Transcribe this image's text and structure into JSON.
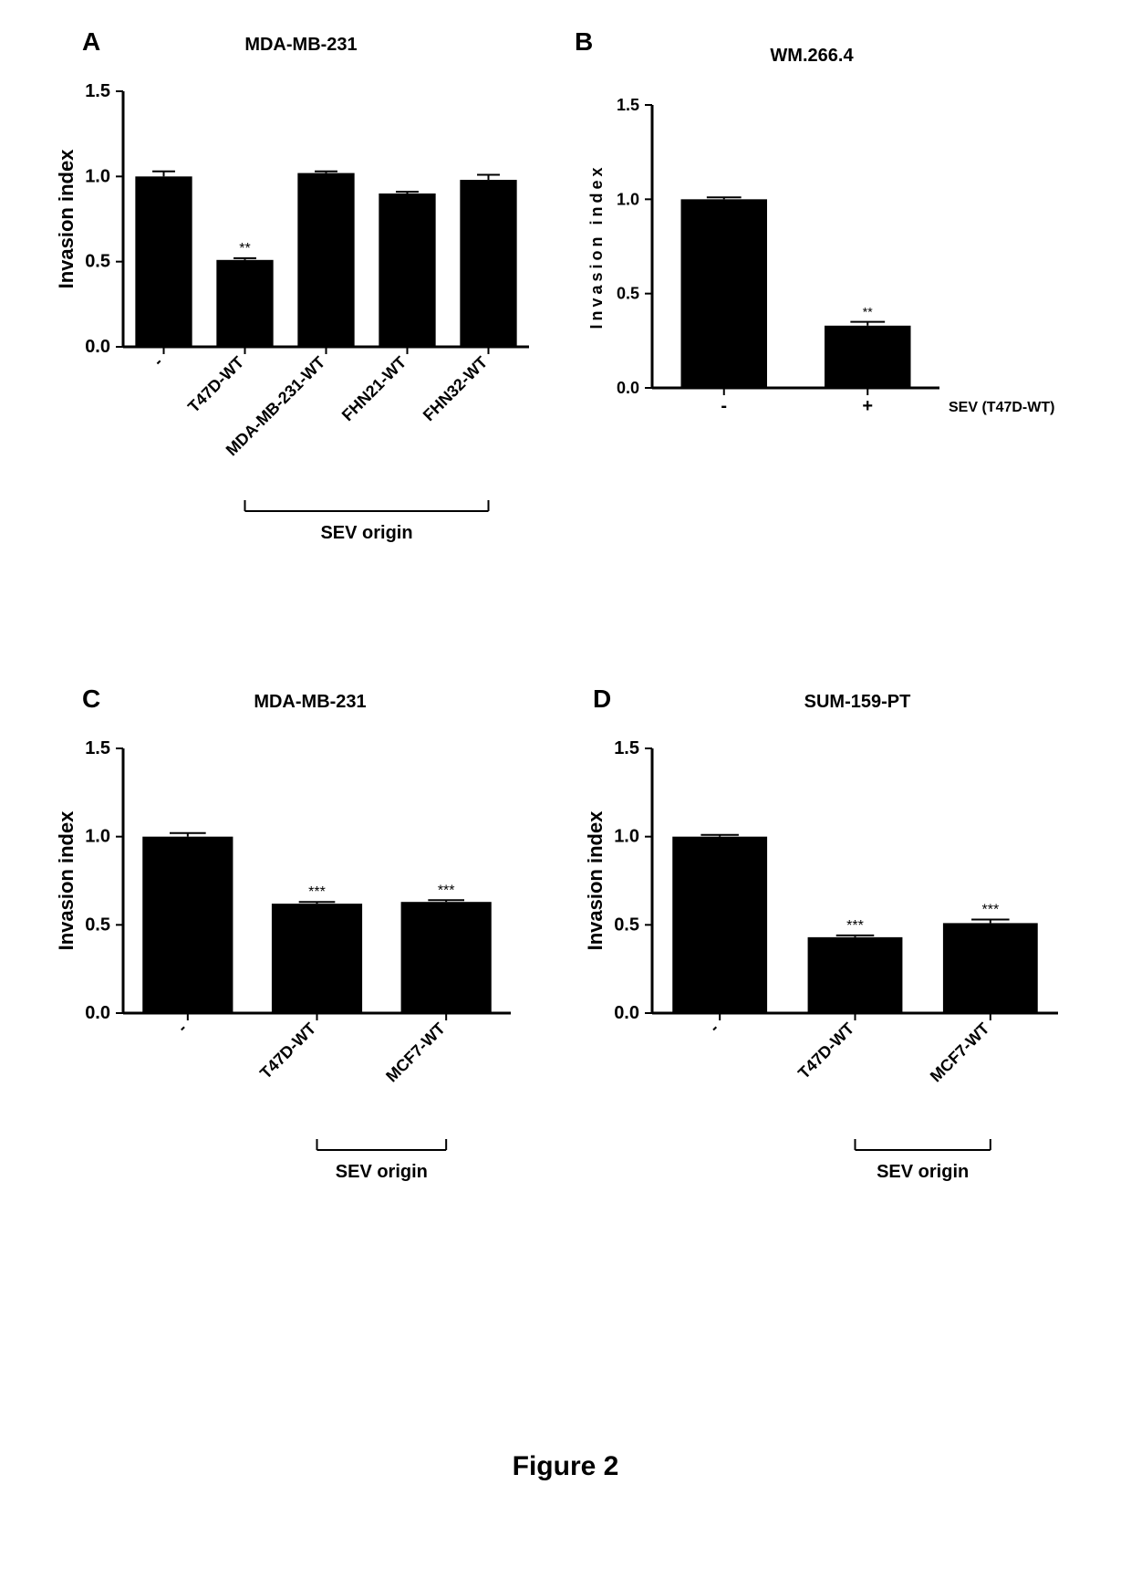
{
  "figure_caption": "Figure 2",
  "panelA": {
    "label": "A",
    "title": "MDA-MB-231",
    "ylabel": "Invasion index",
    "xlabel": "SEV origin",
    "ylim": [
      0,
      1.5
    ],
    "yticks": [
      0.0,
      0.5,
      1.0,
      1.5
    ],
    "categories": [
      "-",
      "T47D-WT",
      "MDA-MB-231-WT",
      "FHN21-WT",
      "FHN32-WT"
    ],
    "values": [
      1.0,
      0.51,
      1.02,
      0.9,
      0.98
    ],
    "errors": [
      0.03,
      0.01,
      0.01,
      0.01,
      0.03
    ],
    "sig": [
      "",
      "**",
      "",
      "",
      ""
    ],
    "bar_color": "#000000",
    "bar_width": 0.7,
    "bracket_start": 1,
    "bracket_end": 4
  },
  "panelB": {
    "label": "B",
    "title": "WM.266.4",
    "ylabel": "Invasion index",
    "side_label": "SEV (T47D-WT)",
    "ylim": [
      0,
      1.5
    ],
    "yticks": [
      0.0,
      0.5,
      1.0,
      1.5
    ],
    "categories": [
      "-",
      "+"
    ],
    "values": [
      1.0,
      0.33
    ],
    "errors": [
      0.01,
      0.02
    ],
    "sig": [
      "",
      "**"
    ],
    "bar_color": "#000000",
    "bar_width": 0.6
  },
  "panelC": {
    "label": "C",
    "title": "MDA-MB-231",
    "ylabel": "Invasion index",
    "xlabel": "SEV origin",
    "ylim": [
      0,
      1.5
    ],
    "yticks": [
      0.0,
      0.5,
      1.0,
      1.5
    ],
    "categories": [
      "-",
      "T47D-WT",
      "MCF7-WT"
    ],
    "values": [
      1.0,
      0.62,
      0.63
    ],
    "errors": [
      0.02,
      0.01,
      0.01
    ],
    "sig": [
      "",
      "***",
      "***"
    ],
    "bar_color": "#000000",
    "bar_width": 0.7,
    "bracket_start": 1,
    "bracket_end": 2
  },
  "panelD": {
    "label": "D",
    "title": "SUM-159-PT",
    "ylabel": "Invasion index",
    "xlabel": "SEV origin",
    "ylim": [
      0,
      1.5
    ],
    "yticks": [
      0.0,
      0.5,
      1.0,
      1.5
    ],
    "categories": [
      "-",
      "T47D-WT",
      "MCF7-WT"
    ],
    "values": [
      1.0,
      0.43,
      0.51
    ],
    "errors": [
      0.01,
      0.01,
      0.02
    ],
    "sig": [
      "",
      "***",
      "***"
    ],
    "bar_color": "#000000",
    "bar_width": 0.7,
    "bracket_start": 1,
    "bracket_end": 2
  }
}
